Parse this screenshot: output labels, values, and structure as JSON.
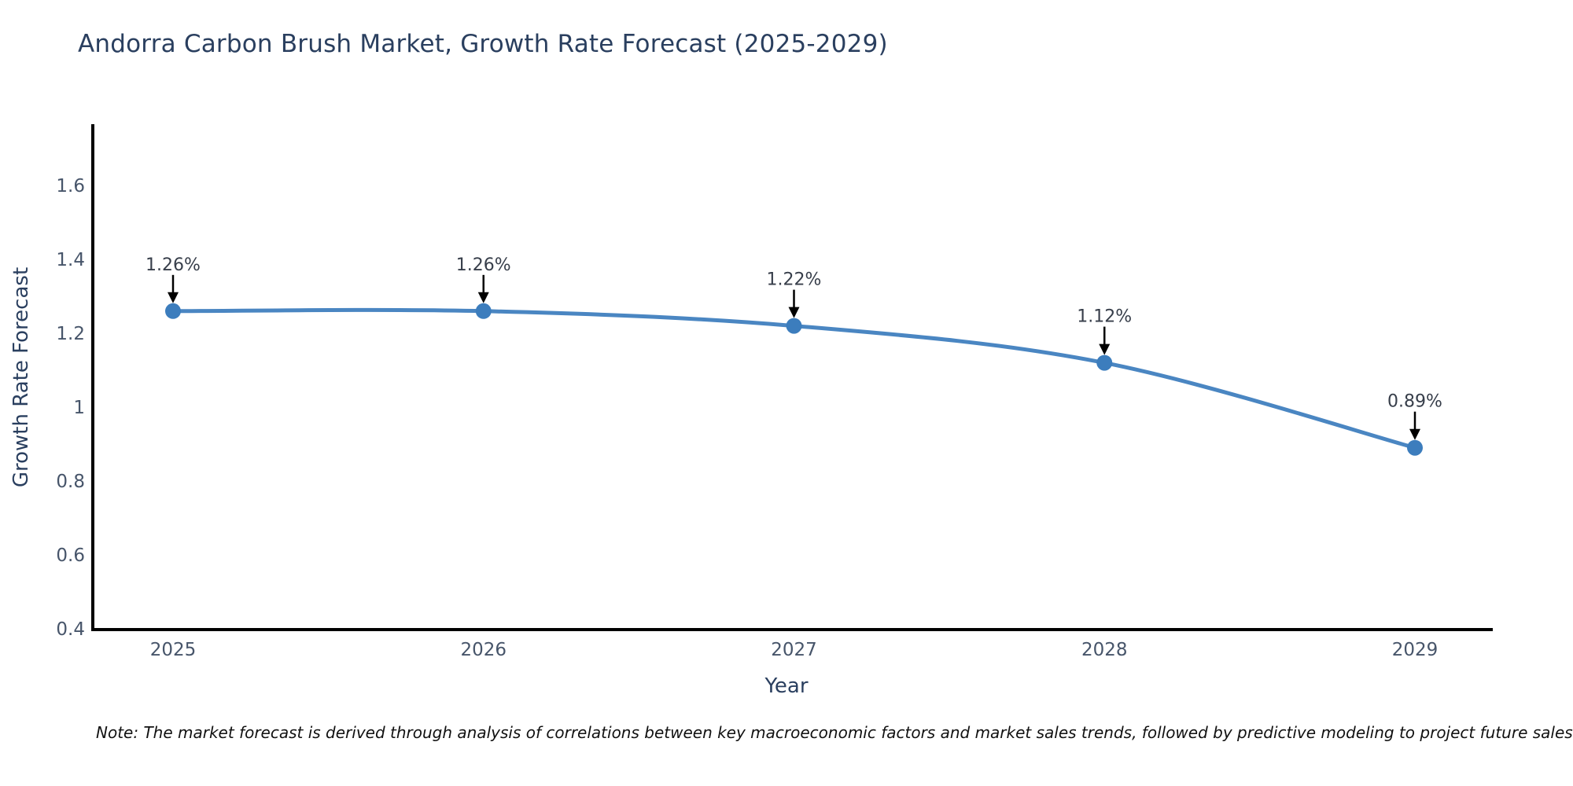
{
  "header": {
    "title": "Andorra Carbon Brush Market, Growth Rate Forecast (2025-2029)"
  },
  "chart_data": {
    "type": "line",
    "title": "Andorra Carbon Brush Market, Growth Rate Forecast (2025-2029)",
    "x": [
      2025,
      2026,
      2027,
      2028,
      2029
    ],
    "series": [
      {
        "name": "Growth Rate Forecast",
        "values": [
          1.26,
          1.26,
          1.22,
          1.12,
          0.89
        ]
      }
    ],
    "annotations": [
      "1.26%",
      "1.26%",
      "1.22%",
      "1.12%",
      "0.89%"
    ],
    "xlabel": "Year",
    "ylabel": "Growth Rate Forecast",
    "x_tick_labels": [
      "2025",
      "2026",
      "2027",
      "2028",
      "2029"
    ],
    "y_tick_labels": [
      "0.4",
      "0.6",
      "0.8",
      "1",
      "1.2",
      "1.4",
      "1.6"
    ],
    "y_tick_values": [
      0.4,
      0.6,
      0.8,
      1.0,
      1.2,
      1.4,
      1.6
    ],
    "ylim": [
      0.4,
      1.77
    ],
    "line_shape": "spline",
    "markers": true,
    "grid": false,
    "legend": false,
    "colors": {
      "line": "#4a86c2",
      "marker": "#3c7dbd",
      "axis": "#000000",
      "arrow": "#000000",
      "tick_text": "#47556a",
      "title_text": "#2a3f5f",
      "annotation_text": "#373e4a"
    }
  },
  "footer": {
    "note": "Note: The market forecast is derived through analysis of correlations between key macroeconomic factors and market sales trends, followed by predictive modeling to project future sales"
  }
}
